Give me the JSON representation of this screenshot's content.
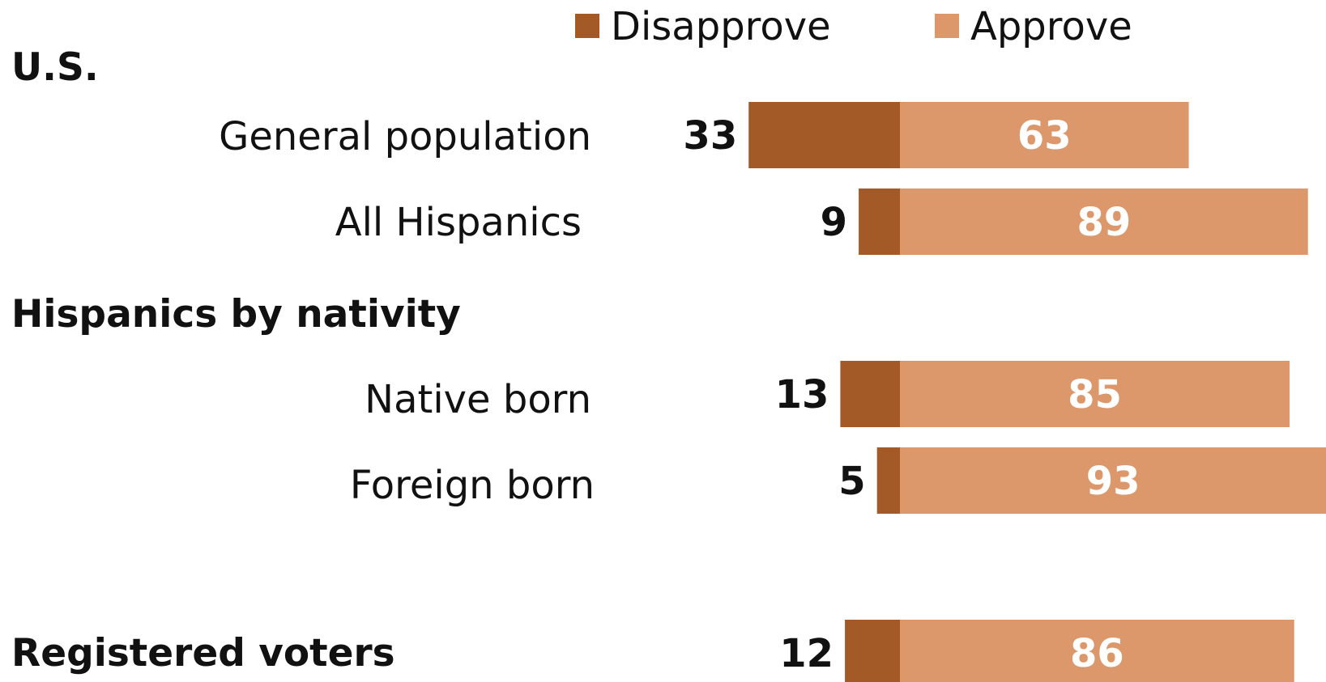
{
  "colors": {
    "disapprove": "#a35a26",
    "approve": "#dc976a"
  },
  "legend": {
    "disapprove": "Disapprove",
    "approve": "Approve"
  },
  "headings": {
    "us": "U.S.",
    "nativity": "Hispanics by nativity",
    "voters": "Registered voters"
  },
  "chart_data": {
    "type": "bar",
    "orientation": "horizontal",
    "layout": "diverging",
    "categories": [
      "General population",
      "All Hispanics",
      "Native born",
      "Foreign born",
      "Registered voters"
    ],
    "series": [
      {
        "name": "Disapprove",
        "values": [
          33,
          9,
          13,
          5,
          12
        ]
      },
      {
        "name": "Approve",
        "values": [
          63,
          89,
          85,
          93,
          86
        ]
      }
    ],
    "groups": [
      {
        "name": "U.S.",
        "categories": [
          "General population",
          "All Hispanics"
        ]
      },
      {
        "name": "Hispanics by nativity",
        "categories": [
          "Native born",
          "Foreign born"
        ]
      },
      {
        "name": "Registered voters",
        "categories": []
      }
    ],
    "legend_position": "top",
    "grid": false
  }
}
